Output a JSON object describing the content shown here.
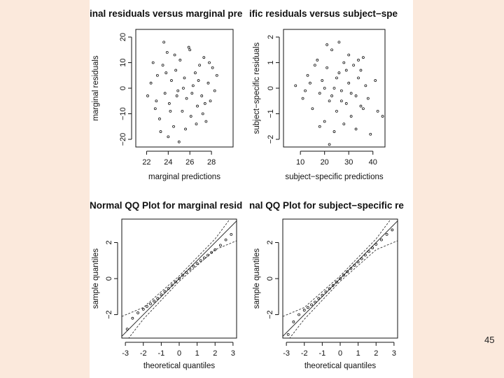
{
  "slide": {
    "page_number": "45"
  },
  "colors": {
    "background": "#fbe9dc",
    "panel": "#ffffff",
    "ink": "#111111"
  },
  "chart_data": [
    {
      "type": "scatter",
      "title": "Marginal residuals versus marginal predictions",
      "title_visible": "inal residuals versus marginal pre",
      "xlabel": "marginal predictions",
      "ylabel": "marginal residuals",
      "xlim": [
        21,
        30
      ],
      "ylim": [
        -23,
        23
      ],
      "xticks": [
        22,
        24,
        26,
        28
      ],
      "yticks": [
        -20,
        -10,
        0,
        10,
        20
      ],
      "points": [
        [
          22.1,
          -3
        ],
        [
          22.4,
          2
        ],
        [
          22.8,
          -8
        ],
        [
          23.0,
          5
        ],
        [
          23.2,
          -12
        ],
        [
          23.5,
          9
        ],
        [
          23.7,
          -2
        ],
        [
          23.9,
          14
        ],
        [
          24.1,
          -6
        ],
        [
          24.3,
          3
        ],
        [
          24.5,
          -15
        ],
        [
          24.7,
          7
        ],
        [
          24.9,
          -1
        ],
        [
          25.1,
          11
        ],
        [
          25.3,
          -9
        ],
        [
          25.5,
          4
        ],
        [
          25.7,
          -4
        ],
        [
          25.9,
          16
        ],
        [
          26.1,
          -11
        ],
        [
          26.3,
          1
        ],
        [
          26.5,
          6
        ],
        [
          26.7,
          -7
        ],
        [
          26.9,
          9
        ],
        [
          27.1,
          -3
        ],
        [
          27.3,
          12
        ],
        [
          27.5,
          -13
        ],
        [
          27.7,
          2
        ],
        [
          27.9,
          -5
        ],
        [
          28.1,
          8
        ],
        [
          28.3,
          -1
        ],
        [
          22.6,
          10
        ],
        [
          23.3,
          -17
        ],
        [
          24.0,
          -19
        ],
        [
          24.6,
          13
        ],
        [
          25.0,
          -21
        ],
        [
          25.6,
          -16
        ],
        [
          26.0,
          15
        ],
        [
          26.6,
          -14
        ],
        [
          27.2,
          -10
        ],
        [
          27.8,
          10
        ],
        [
          23.6,
          18
        ],
        [
          24.2,
          -9
        ],
        [
          24.8,
          -3
        ],
        [
          25.4,
          0
        ],
        [
          26.2,
          -2
        ],
        [
          26.8,
          3
        ],
        [
          27.4,
          -6
        ],
        [
          28.5,
          5
        ],
        [
          22.9,
          -5
        ],
        [
          23.8,
          6
        ]
      ]
    },
    {
      "type": "scatter",
      "title": "Subject-specific residuals versus subject-specific predictions",
      "title_visible": "ific residuals versus subject−spe",
      "xlabel": "subject−specific predictions",
      "ylabel": "subject−specific residuals",
      "xlim": [
        3,
        45
      ],
      "ylim": [
        -2.3,
        2.3
      ],
      "xticks": [
        10,
        20,
        30,
        40
      ],
      "yticks": [
        -2,
        -1,
        0,
        1,
        2
      ],
      "points": [
        [
          8,
          0.1
        ],
        [
          11,
          -0.4
        ],
        [
          13,
          0.5
        ],
        [
          15,
          -0.8
        ],
        [
          17,
          1.1
        ],
        [
          18,
          -0.2
        ],
        [
          19,
          0.3
        ],
        [
          20,
          -1.3
        ],
        [
          21,
          0.8
        ],
        [
          22,
          -0.5
        ],
        [
          23,
          1.5
        ],
        [
          24,
          0.0
        ],
        [
          25,
          -0.9
        ],
        [
          26,
          0.6
        ],
        [
          27,
          -0.1
        ],
        [
          28,
          1.0
        ],
        [
          29,
          -0.6
        ],
        [
          30,
          0.2
        ],
        [
          31,
          -1.1
        ],
        [
          32,
          0.9
        ],
        [
          33,
          -0.3
        ],
        [
          34,
          0.4
        ],
        [
          35,
          -0.7
        ],
        [
          36,
          1.2
        ],
        [
          37,
          0.1
        ],
        [
          38,
          -0.4
        ],
        [
          39,
          -1.8
        ],
        [
          41,
          0.3
        ],
        [
          42,
          -0.9
        ],
        [
          44,
          -1.1
        ],
        [
          16,
          0.9
        ],
        [
          18,
          -1.5
        ],
        [
          21,
          1.7
        ],
        [
          24,
          -1.7
        ],
        [
          26,
          1.8
        ],
        [
          28,
          -1.4
        ],
        [
          30,
          1.3
        ],
        [
          33,
          -1.6
        ],
        [
          35,
          0.7
        ],
        [
          22,
          -2.2
        ],
        [
          25,
          0.4
        ],
        [
          27,
          -0.5
        ],
        [
          29,
          0.7
        ],
        [
          31,
          -0.2
        ],
        [
          20,
          0.0
        ],
        [
          23,
          -0.3
        ],
        [
          34,
          1.1
        ],
        [
          36,
          -0.8
        ],
        [
          14,
          0.2
        ],
        [
          12,
          -0.1
        ]
      ]
    },
    {
      "type": "qq",
      "title": "Normal QQ Plot for marginal residuals",
      "title_visible": "Normal QQ Plot for marginal resid",
      "xlabel": "theoretical quantiles",
      "ylabel": "sample quantiles",
      "xlim": [
        -3.2,
        3.2
      ],
      "ylim": [
        -3.3,
        3.3
      ],
      "xticks": [
        -3,
        -2,
        -1,
        0,
        1,
        2,
        3
      ],
      "yticks": [
        -2,
        0,
        2
      ],
      "points": [
        [
          -2.9,
          -2.8
        ],
        [
          -2.6,
          -2.2
        ],
        [
          -2.3,
          -1.9
        ],
        [
          -2.0,
          -1.7
        ],
        [
          -1.8,
          -1.55
        ],
        [
          -1.6,
          -1.4
        ],
        [
          -1.4,
          -1.25
        ],
        [
          -1.2,
          -1.1
        ],
        [
          -1.0,
          -0.9
        ],
        [
          -0.8,
          -0.72
        ],
        [
          -0.6,
          -0.55
        ],
        [
          -0.4,
          -0.36
        ],
        [
          -0.2,
          -0.18
        ],
        [
          0.0,
          0.0
        ],
        [
          0.2,
          0.18
        ],
        [
          0.4,
          0.35
        ],
        [
          0.6,
          0.52
        ],
        [
          0.8,
          0.68
        ],
        [
          1.0,
          0.84
        ],
        [
          1.2,
          1.0
        ],
        [
          1.4,
          1.15
        ],
        [
          1.6,
          1.3
        ],
        [
          1.8,
          1.45
        ],
        [
          2.0,
          1.6
        ],
        [
          2.3,
          1.85
        ],
        [
          2.6,
          2.15
        ],
        [
          2.9,
          2.45
        ]
      ],
      "bands": {
        "center": [
          [
            -3.2,
            -3.2
          ],
          [
            3.2,
            3.2
          ]
        ],
        "upper": [
          [
            -3.2,
            -2.1
          ],
          [
            -2,
            -1.6
          ],
          [
            0,
            0.15
          ],
          [
            2,
            2.2
          ],
          [
            3.2,
            3.8
          ]
        ],
        "lower": [
          [
            -3.2,
            -3.8
          ],
          [
            -2,
            -2.25
          ],
          [
            0,
            -0.15
          ],
          [
            2,
            1.6
          ],
          [
            3.2,
            2.1
          ]
        ]
      }
    },
    {
      "type": "qq",
      "title": "Normal QQ Plot for subject-specific residuals",
      "title_visible": "nal QQ Plot for subject−specific re",
      "xlabel": "theoretical quantiles",
      "ylabel": "sample quantiles",
      "xlim": [
        -3.2,
        3.2
      ],
      "ylim": [
        -3.3,
        3.3
      ],
      "xticks": [
        -3,
        -2,
        -1,
        0,
        1,
        2,
        3
      ],
      "yticks": [
        -2,
        0,
        2
      ],
      "points": [
        [
          -2.9,
          -3.1
        ],
        [
          -2.6,
          -2.4
        ],
        [
          -2.3,
          -2.0
        ],
        [
          -2.0,
          -1.75
        ],
        [
          -1.8,
          -1.6
        ],
        [
          -1.6,
          -1.45
        ],
        [
          -1.4,
          -1.3
        ],
        [
          -1.2,
          -1.1
        ],
        [
          -1.0,
          -0.92
        ],
        [
          -0.8,
          -0.74
        ],
        [
          -0.6,
          -0.56
        ],
        [
          -0.4,
          -0.38
        ],
        [
          -0.2,
          -0.19
        ],
        [
          0.0,
          0.0
        ],
        [
          0.2,
          0.19
        ],
        [
          0.4,
          0.38
        ],
        [
          0.6,
          0.56
        ],
        [
          0.8,
          0.74
        ],
        [
          1.0,
          0.92
        ],
        [
          1.2,
          1.1
        ],
        [
          1.4,
          1.3
        ],
        [
          1.6,
          1.5
        ],
        [
          1.8,
          1.7
        ],
        [
          2.0,
          1.9
        ],
        [
          2.3,
          2.15
        ],
        [
          2.6,
          2.45
        ],
        [
          2.9,
          2.7
        ]
      ],
      "bands": {
        "center": [
          [
            -3.2,
            -3.2
          ],
          [
            3.2,
            3.2
          ]
        ],
        "upper": [
          [
            -3.2,
            -2.1
          ],
          [
            -2,
            -1.6
          ],
          [
            0,
            0.15
          ],
          [
            2,
            2.2
          ],
          [
            3.2,
            3.8
          ]
        ],
        "lower": [
          [
            -3.2,
            -3.8
          ],
          [
            -2,
            -2.25
          ],
          [
            0,
            -0.15
          ],
          [
            2,
            1.6
          ],
          [
            3.2,
            2.1
          ]
        ]
      }
    }
  ]
}
